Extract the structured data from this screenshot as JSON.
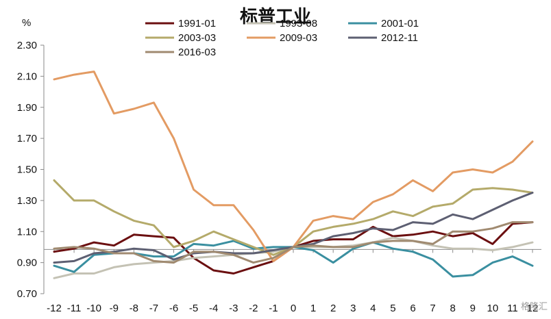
{
  "chart_data": {
    "type": "line",
    "title": "标普工业",
    "unit_label": "%",
    "ylim": [
      0.7,
      2.3
    ],
    "y_ticks": [
      "2.30",
      "2.10",
      "1.90",
      "1.70",
      "1.50",
      "1.30",
      "1.10",
      "0.90",
      "0.70"
    ],
    "x": [
      -12,
      -11,
      -10,
      -9,
      -8,
      -7,
      -6,
      -5,
      -4,
      -3,
      -2,
      -1,
      0,
      1,
      2,
      3,
      4,
      5,
      6,
      7,
      8,
      9,
      10,
      11,
      12
    ],
    "x_tick_labels": [
      "-12",
      "-11",
      "-10",
      "-9",
      "-8",
      "-7",
      "-6",
      "-5",
      "-4",
      "-3",
      "-2",
      "-1",
      "0",
      "1",
      "2",
      "3",
      "4",
      "5",
      "6",
      "7",
      "8",
      "9",
      "10",
      "11",
      "12"
    ],
    "reference_line_y": 0.985,
    "grid": false,
    "legend_position": "top",
    "watermark": "格隆汇",
    "series": [
      {
        "name": "1991-01",
        "color": "#6b0f10",
        "values": [
          0.97,
          0.99,
          1.03,
          1.01,
          1.08,
          1.07,
          1.06,
          0.93,
          0.85,
          0.83,
          0.87,
          0.91,
          1.0,
          1.04,
          1.05,
          1.05,
          1.13,
          1.07,
          1.08,
          1.1,
          1.07,
          1.09,
          1.02,
          1.15,
          1.16
        ]
      },
      {
        "name": "1993-08",
        "color": "#c4c2b4",
        "values": [
          0.8,
          0.83,
          0.83,
          0.87,
          0.89,
          0.9,
          0.91,
          0.93,
          0.94,
          0.95,
          0.96,
          0.97,
          1.0,
          1.0,
          1.0,
          1.01,
          1.03,
          1.06,
          1.04,
          1.01,
          0.99,
          0.99,
          0.98,
          1.0,
          1.03
        ]
      },
      {
        "name": "2001-01",
        "color": "#3a8fa0",
        "values": [
          0.88,
          0.84,
          0.95,
          0.96,
          0.96,
          0.94,
          0.94,
          1.02,
          1.01,
          1.04,
          0.99,
          1.0,
          1.0,
          0.98,
          0.9,
          0.99,
          1.03,
          0.99,
          0.97,
          0.92,
          0.81,
          0.82,
          0.9,
          0.94,
          0.88
        ]
      },
      {
        "name": "2003-03",
        "color": "#b4aa6a",
        "values": [
          1.43,
          1.3,
          1.3,
          1.23,
          1.17,
          1.14,
          1.0,
          1.04,
          1.1,
          1.05,
          1.0,
          0.95,
          1.0,
          1.1,
          1.13,
          1.15,
          1.18,
          1.23,
          1.2,
          1.26,
          1.28,
          1.37,
          1.38,
          1.37,
          1.35
        ]
      },
      {
        "name": "2009-03",
        "color": "#e39b63",
        "values": [
          2.08,
          2.11,
          2.13,
          1.86,
          1.89,
          1.93,
          1.7,
          1.37,
          1.27,
          1.27,
          1.11,
          0.91,
          1.0,
          1.17,
          1.2,
          1.18,
          1.29,
          1.34,
          1.43,
          1.36,
          1.48,
          1.5,
          1.48,
          1.55,
          1.68
        ]
      },
      {
        "name": "2012-11",
        "color": "#5d5f72",
        "values": [
          0.9,
          0.91,
          0.96,
          0.97,
          0.99,
          0.98,
          0.92,
          0.96,
          0.97,
          0.96,
          0.96,
          0.98,
          1.0,
          1.02,
          1.07,
          1.09,
          1.12,
          1.11,
          1.16,
          1.15,
          1.21,
          1.18,
          1.24,
          1.3,
          1.35
        ]
      },
      {
        "name": "2016-03",
        "color": "#a08a70",
        "values": [
          0.99,
          1.0,
          0.99,
          0.96,
          0.96,
          0.91,
          0.9,
          0.97,
          0.97,
          0.95,
          0.9,
          0.93,
          1.0,
          1.01,
          1.0,
          1.0,
          1.03,
          1.04,
          1.04,
          1.02,
          1.1,
          1.1,
          1.12,
          1.16,
          1.16
        ]
      }
    ]
  }
}
